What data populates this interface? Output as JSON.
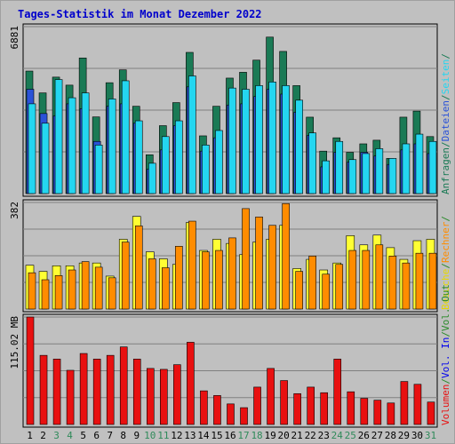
{
  "chart_data": {
    "type": "bar",
    "title": "Tages-Statistik im Monat Dezember 2022",
    "colors": {
      "background": "#c0c0c0",
      "plot": "#c0c0c0",
      "title": "#0000cc",
      "weekday_label": "#000000",
      "weekend_label": "#2f8a5a",
      "anfragen": "#1a7a55",
      "dateien": "#2a52d8",
      "seiten": "#24d6f0",
      "besuche": "#ffff33",
      "rechner": "#ff8c00",
      "volumen": "#e81010",
      "vol_in": "#0000ee",
      "vol_out": "#2a8a2a"
    },
    "days": [
      "1",
      "2",
      "3",
      "4",
      "5",
      "6",
      "7",
      "8",
      "9",
      "10",
      "11",
      "12",
      "13",
      "14",
      "15",
      "16",
      "17",
      "18",
      "19",
      "20",
      "21",
      "22",
      "23",
      "24",
      "25",
      "26",
      "27",
      "28",
      "29",
      "30",
      "31"
    ],
    "weekend_days": [
      "3",
      "4",
      "10",
      "11",
      "17",
      "18",
      "24",
      "25",
      "31"
    ],
    "panels": [
      {
        "id": "requests",
        "max_label": "6881",
        "ylim": [
          0,
          6881
        ],
        "side_labels": [
          {
            "text": "Anfragen",
            "color": "#1a7a55"
          },
          {
            "text": "/",
            "color": "#1a7a55"
          },
          {
            "text": "Dateien",
            "color": "#2a52d8"
          },
          {
            "text": "/",
            "color": "#1a7a55"
          },
          {
            "text": "Seiten",
            "color": "#24d6f0"
          },
          {
            "text": "/",
            "color": "#1a7a55"
          }
        ],
        "series": [
          {
            "name": "Anfragen",
            "color": "#1a7a55",
            "values": [
              5050,
              4150,
              4800,
              4470,
              5590,
              3160,
              4570,
              5100,
              3600,
              1600,
              2800,
              3750,
              5820,
              2380,
              3600,
              4760,
              5000,
              5500,
              6450,
              5860,
              4450,
              3150,
              1750,
              2300,
              1700,
              2050,
              2200,
              1450,
              3150,
              3400,
              2350
            ]
          },
          {
            "name": "Dateien",
            "color": "#2a52d8",
            "values": [
              4300,
              3300,
              3200,
              3700,
              3500,
              2150,
              3600,
              3700,
              2900,
              1000,
              1800,
              2800,
              4400,
              1750,
              2300,
              3650,
              3700,
              4000,
              4300,
              4100,
              3350,
              2400,
              1100,
              1700,
              1300,
              1700,
              1550,
              1200,
              1800,
              2050,
              1650
            ]
          },
          {
            "name": "Seiten",
            "color": "#24d6f0",
            "values": [
              3700,
              2900,
              4700,
              3950,
              4150,
              2000,
              3900,
              4650,
              3000,
              1250,
              2350,
              3000,
              4850,
              2000,
              2600,
              4350,
              4300,
              4450,
              4600,
              4450,
              3850,
              2500,
              1350,
              2150,
              1400,
              1650,
              1850,
              1450,
              2050,
              2450,
              2150
            ]
          }
        ]
      },
      {
        "id": "visits",
        "max_label": "382",
        "ylim": [
          0,
          382
        ],
        "side_labels": [
          {
            "text": "Besuche",
            "color": "#e6d800"
          },
          {
            "text": "/",
            "color": "#2a8a2a"
          },
          {
            "text": "Rechner",
            "color": "#ff8c00"
          },
          {
            "text": "/",
            "color": "#2a8a2a"
          }
        ],
        "series": [
          {
            "name": "Besuche",
            "color": "#ffff33",
            "values": [
              157,
              135,
              155,
              155,
              165,
              165,
              118,
              250,
              332,
              205,
              180,
              160,
              310,
              210,
              250,
              235,
              195,
              240,
              250,
              300,
              145,
              178,
              140,
              165,
              263,
              230,
              265,
              220,
              178,
              245,
              250
            ]
          },
          {
            "name": "Rechner",
            "color": "#ff8c00",
            "values": [
              130,
              105,
              120,
              140,
              170,
              150,
              112,
              240,
              298,
              180,
              148,
              225,
              315,
              205,
              210,
              255,
              360,
              330,
              300,
              378,
              135,
              190,
              125,
              160,
              210,
              210,
              230,
              190,
              165,
              200,
              200
            ]
          }
        ]
      },
      {
        "id": "volume",
        "max_label": "115.02 MB",
        "ylim": [
          0,
          115.02
        ],
        "side_labels": [
          {
            "text": "Volumen",
            "color": "#e81010"
          },
          {
            "text": "/",
            "color": "#2a8a2a"
          },
          {
            "text": "Vol. In",
            "color": "#0000ee"
          },
          {
            "text": "/",
            "color": "#2a8a2a"
          },
          {
            "text": "Vol. Out",
            "color": "#2a8a2a"
          }
        ],
        "series": [
          {
            "name": "Volumen",
            "color": "#e81010",
            "values": [
              115,
              74,
              70,
              58,
              76,
              70,
              74,
              83,
              70,
              60,
              59,
              64,
              88,
              36,
              31,
              22,
              18,
              40,
              60,
              47,
              33,
              40,
              34,
              70,
              35,
              28,
              26,
              23,
              46,
              43,
              24
            ]
          }
        ]
      }
    ]
  }
}
